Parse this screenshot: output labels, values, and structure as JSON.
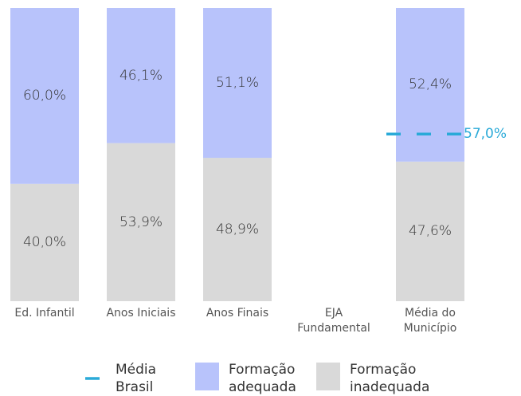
{
  "chart_data": {
    "type": "bar",
    "stacked": true,
    "categories": [
      "Ed. Infantil",
      "Anos Iniciais",
      "Anos Finais",
      "EJA Fundamental",
      "Média do Município"
    ],
    "series": [
      {
        "name": "Formação adequada",
        "color": "#b8c3fb",
        "values": [
          60.0,
          46.1,
          51.1,
          null,
          52.4
        ],
        "value_labels": [
          "60,0%",
          "46,1%",
          "51,1%",
          null,
          "52,4%"
        ]
      },
      {
        "name": "Formação inadequada",
        "color": "#d9d9d9",
        "values": [
          40.0,
          53.9,
          48.9,
          null,
          47.6
        ],
        "value_labels": [
          "40,0%",
          "53,9%",
          "48,9%",
          null,
          "47,6%"
        ]
      }
    ],
    "reference_lines": [
      {
        "name": "Média Brasil",
        "value": 57.0,
        "value_label": "57,0%",
        "color": "#2aaad8",
        "category": "Média do Município"
      }
    ]
  }
}
